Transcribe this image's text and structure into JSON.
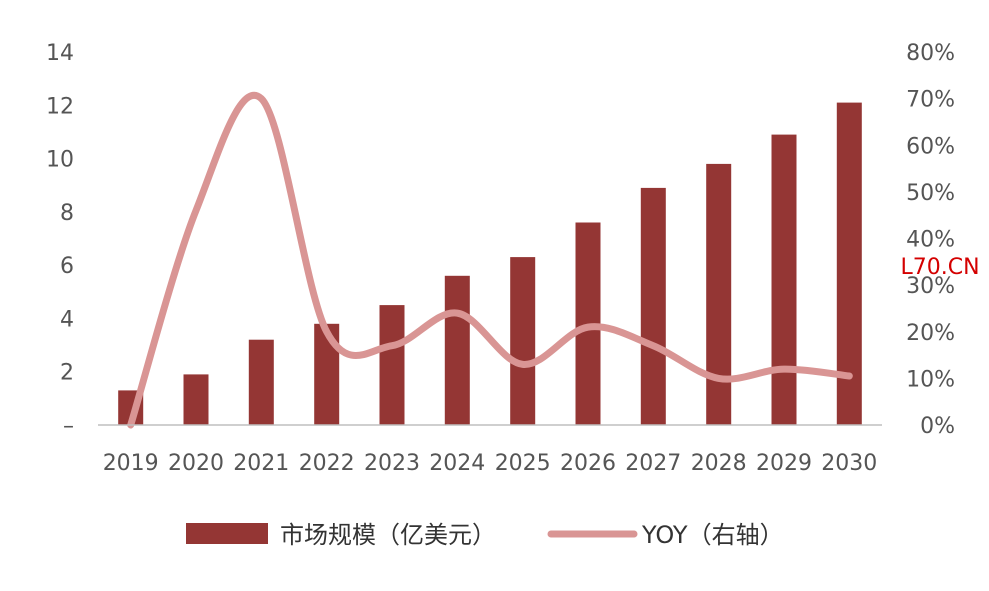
{
  "chart_data": {
    "type": "bar",
    "categories": [
      "2019",
      "2020",
      "2021",
      "2022",
      "2023",
      "2024",
      "2025",
      "2026",
      "2027",
      "2028",
      "2029",
      "2030"
    ],
    "series": [
      {
        "name": "市场规模（亿美元）",
        "type": "bar",
        "axis": "left",
        "color": "#943634",
        "values": [
          1.3,
          1.9,
          3.2,
          3.8,
          4.5,
          5.6,
          6.3,
          7.6,
          8.9,
          9.8,
          10.9,
          12.1
        ]
      },
      {
        "name": "YOY（右轴）",
        "type": "line",
        "smooth": true,
        "axis": "right",
        "color": "#D99594",
        "values": [
          0,
          46,
          70,
          20,
          17,
          24,
          13,
          21,
          17,
          10,
          12,
          10.5
        ]
      }
    ],
    "y_left": {
      "min": 0,
      "max": 14,
      "ticks": [
        {
          "value": 0,
          "label": "–"
        },
        {
          "value": 2,
          "label": "2"
        },
        {
          "value": 4,
          "label": "4"
        },
        {
          "value": 6,
          "label": "6"
        },
        {
          "value": 8,
          "label": "8"
        },
        {
          "value": 10,
          "label": "10"
        },
        {
          "value": 12,
          "label": "12"
        },
        {
          "value": 14,
          "label": "14"
        }
      ]
    },
    "y_right": {
      "min": 0,
      "max": 80,
      "ticks": [
        {
          "value": 0,
          "label": "0%"
        },
        {
          "value": 10,
          "label": "10%"
        },
        {
          "value": 20,
          "label": "20%"
        },
        {
          "value": 30,
          "label": "30%"
        },
        {
          "value": 40,
          "label": "40%"
        },
        {
          "value": 50,
          "label": "50%"
        },
        {
          "value": 60,
          "label": "60%"
        },
        {
          "value": 70,
          "label": "70%"
        },
        {
          "value": 80,
          "label": "80%"
        }
      ]
    },
    "grid": false,
    "legend_position": "bottom-center",
    "watermark": "L70.CN"
  }
}
